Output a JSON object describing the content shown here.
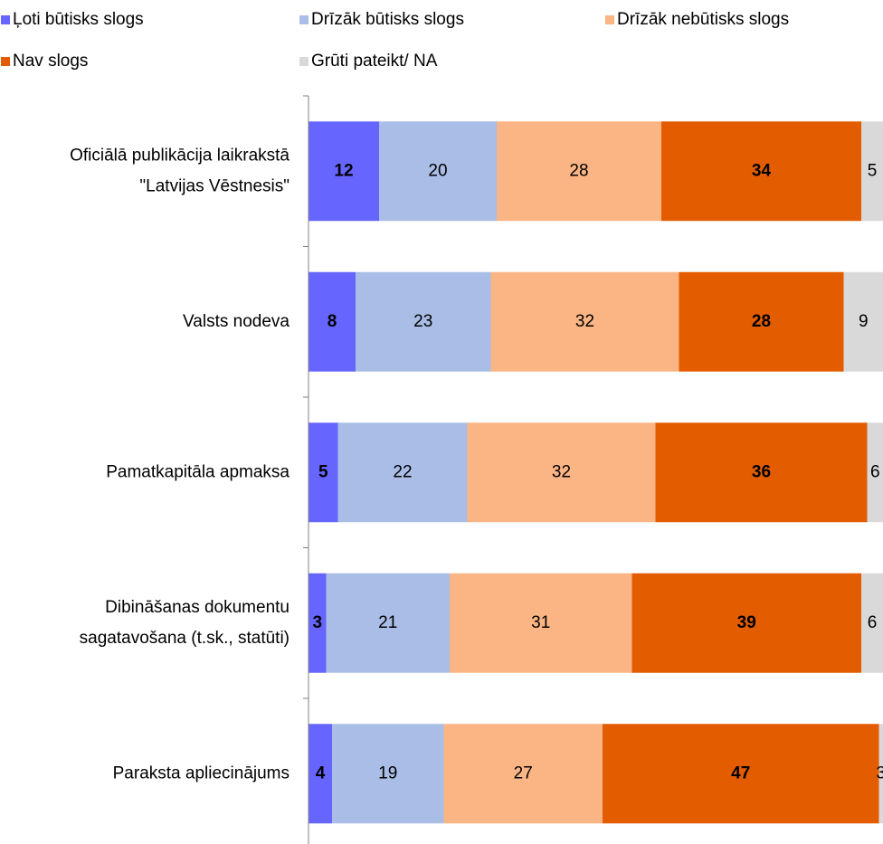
{
  "chart_data": {
    "type": "stacked-bar-horizontal",
    "categories": [
      [
        "Oficiālā publikācija laikrakstā",
        "\"Latvijas Vēstnesis\""
      ],
      [
        "Valsts nodeva"
      ],
      [
        "Pamatkapitāla apmaksa"
      ],
      [
        "Dibināšanas dokumentu",
        "sagatavošana (t.sk., statūti)"
      ],
      [
        "Paraksta apliecinājums"
      ]
    ],
    "series": [
      {
        "name": "Ļoti būtisks slogs",
        "color": "#6666ff",
        "label_color": "#ffffff",
        "label_bold": true,
        "values": [
          12,
          8,
          5,
          3,
          4
        ]
      },
      {
        "name": "Drīzāk būtisks slogs",
        "color": "#a9bde6",
        "label_color": "#000000",
        "label_bold": false,
        "values": [
          20,
          23,
          22,
          21,
          19
        ]
      },
      {
        "name": "Drīzāk nebūtisks slogs",
        "color": "#fbb584",
        "label_color": "#000000",
        "label_bold": false,
        "values": [
          28,
          32,
          32,
          31,
          27
        ]
      },
      {
        "name": "Nav slogs",
        "color": "#e35d00",
        "label_color": "#000000",
        "label_bold": true,
        "values": [
          34,
          28,
          36,
          39,
          47
        ]
      },
      {
        "name": "Grūti pateikt/ NA",
        "color": "#d9d9d9",
        "label_color": "#000000",
        "label_bold": false,
        "values": [
          5,
          9,
          6,
          6,
          3
        ]
      }
    ],
    "xlim": [
      0,
      100
    ],
    "legend": "top"
  }
}
